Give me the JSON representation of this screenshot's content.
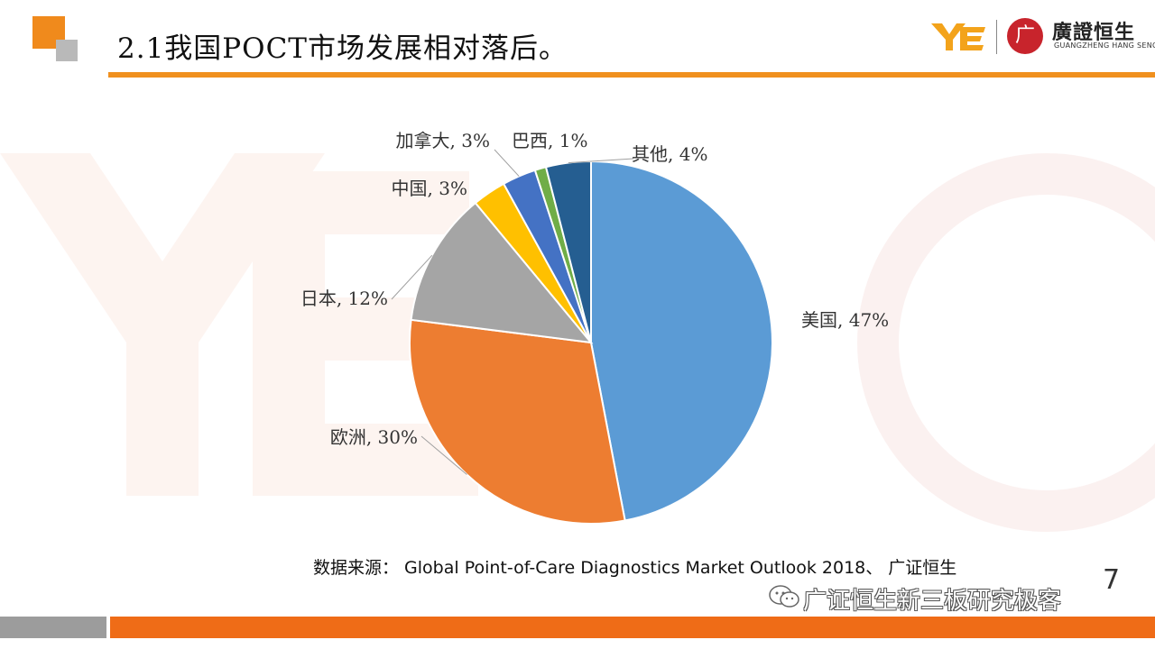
{
  "header": {
    "title": "2.1我国POCT市场发展相对落后。",
    "logo_name": "廣證恒生",
    "logo_sub": "GUANGZHENG HANG SENG",
    "seal_char": "广"
  },
  "colors": {
    "accent_orange": "#f0901e",
    "footer_orange": "#ef6c17"
  },
  "chart_data": {
    "type": "pie",
    "categories": [
      "美国",
      "欧洲",
      "日本",
      "中国",
      "加拿大",
      "巴西",
      "其他"
    ],
    "values": [
      47,
      30,
      12,
      3,
      3,
      1,
      4
    ],
    "labels": [
      "美国, 47%",
      "欧洲, 30%",
      "日本, 12%",
      "中国, 3%",
      "加拿大, 3%",
      "巴西, 1%",
      "其他, 4%"
    ],
    "colors": [
      "#5b9bd5",
      "#ed7d31",
      "#a5a5a5",
      "#ffc000",
      "#4472c4",
      "#70ad47",
      "#255e91"
    ],
    "start_angle": "top, clockwise",
    "legend": "none"
  },
  "source": "数据来源： Global Point-of-Care Diagnostics Market Outlook 2018、 广证恒生",
  "page_number": "7",
  "watermark_text": "广证恒生新三板研究极客"
}
